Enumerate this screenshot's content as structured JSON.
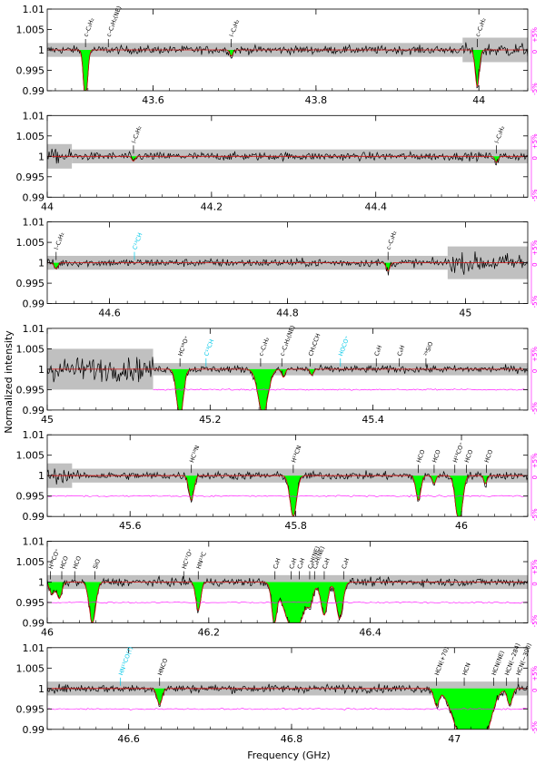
{
  "chart_data": {
    "type": "line",
    "xlabel": "Frequency (GHz)",
    "ylabel": "Normalized intensity",
    "ylim": [
      0.99,
      1.01
    ],
    "y_ticks": [
      {
        "v": 1.01,
        "label": "1.01"
      },
      {
        "v": 1.005,
        "label": "1.005"
      },
      {
        "v": 1.0,
        "label": "1"
      },
      {
        "v": 0.995,
        "label": "0.995"
      },
      {
        "v": 0.99,
        "label": "0.99"
      }
    ],
    "right_axis_labels": [
      "+5%",
      "0",
      "-5%"
    ],
    "colors": {
      "spectrum": "#000000",
      "model_fill": "#00ff00",
      "model_line": "#d01010",
      "noise_band": "#c0c0c0",
      "residual": "#ff00ff",
      "label_black": "#000000",
      "label_cyan": "#00c8e8"
    },
    "panels": [
      {
        "xlim": [
          43.47,
          44.06
        ],
        "x_ticks": [
          {
            "v": 43.6,
            "label": "43.6"
          },
          {
            "v": 43.8,
            "label": "43.8"
          },
          {
            "v": 44.0,
            "label": "44"
          }
        ],
        "show_residual": false,
        "noise_regions": [
          {
            "x": [
              43.47,
              43.98
            ],
            "hw": 0.0017
          },
          {
            "x": [
              43.98,
              44.06
            ],
            "hw": 0.003
          }
        ],
        "absorptions": [
          {
            "x": 43.517,
            "depth": 0.0125,
            "w": 0.0025
          },
          {
            "x": 43.998,
            "depth": 0.009,
            "w": 0.0025
          },
          {
            "x": 43.696,
            "depth": 0.0015,
            "w": 0.002
          }
        ],
        "labels": [
          {
            "x": 43.517,
            "text": "c–C₃H₂",
            "color": "black"
          },
          {
            "x": 43.545,
            "text": "c–C₃H₂(NE)",
            "color": "black"
          },
          {
            "x": 43.696,
            "text": "l–C₃H₂",
            "color": "black"
          },
          {
            "x": 43.998,
            "text": "c–C₃H₂",
            "color": "black"
          }
        ]
      },
      {
        "xlim": [
          44.0,
          44.585
        ],
        "x_ticks": [
          {
            "v": 44.0,
            "label": "44"
          },
          {
            "v": 44.2,
            "label": "44.2"
          },
          {
            "v": 44.4,
            "label": "44.4"
          }
        ],
        "show_residual": false,
        "noise_regions": [
          {
            "x": [
              44.0,
              44.03
            ],
            "hw": 0.003
          },
          {
            "x": [
              44.03,
              44.585
            ],
            "hw": 0.0017
          }
        ],
        "absorptions": [
          {
            "x": 44.105,
            "depth": 0.0012,
            "w": 0.002
          },
          {
            "x": 44.547,
            "depth": 0.0015,
            "w": 0.002
          }
        ],
        "labels": [
          {
            "x": 44.105,
            "text": "l–C₃H₂",
            "color": "black"
          },
          {
            "x": 44.547,
            "text": "l–C₃H₂",
            "color": "black"
          }
        ]
      },
      {
        "xlim": [
          44.53,
          45.07
        ],
        "x_ticks": [
          {
            "v": 44.6,
            "label": "44.6"
          },
          {
            "v": 44.8,
            "label": "44.8"
          },
          {
            "v": 45.0,
            "label": "45"
          }
        ],
        "show_residual": false,
        "noise_regions": [
          {
            "x": [
              44.53,
              44.98
            ],
            "hw": 0.0017
          },
          {
            "x": [
              44.98,
              45.07
            ],
            "hw": 0.004
          }
        ],
        "absorptions": [
          {
            "x": 44.54,
            "depth": 0.0015,
            "w": 0.002
          },
          {
            "x": 44.913,
            "depth": 0.002,
            "w": 0.002
          }
        ],
        "labels": [
          {
            "x": 44.54,
            "text": "l–C₃H₂",
            "color": "black"
          },
          {
            "x": 44.628,
            "text": "C¹³CH",
            "color": "cyan"
          },
          {
            "x": 44.913,
            "text": "c–C₃H₂",
            "color": "black"
          }
        ]
      },
      {
        "xlim": [
          45.0,
          45.59
        ],
        "x_ticks": [
          {
            "v": 45.0,
            "label": "45"
          },
          {
            "v": 45.2,
            "label": "45.2"
          },
          {
            "v": 45.4,
            "label": "45.4"
          }
        ],
        "show_residual": true,
        "noise_regions": [
          {
            "x": [
              45.0,
              45.13
            ],
            "hw": 0.005
          },
          {
            "x": [
              45.13,
              45.59
            ],
            "hw": 0.0015
          }
        ],
        "absorptions": [
          {
            "x": 45.163,
            "depth": 0.012,
            "w": 0.004
          },
          {
            "x": 45.265,
            "depth": 0.011,
            "w": 0.006
          },
          {
            "x": 45.325,
            "depth": 0.0015,
            "w": 0.002
          },
          {
            "x": 45.29,
            "depth": 0.002,
            "w": 0.002
          }
        ],
        "labels": [
          {
            "x": 45.163,
            "text": "HC¹⁸O⁺",
            "color": "black"
          },
          {
            "x": 45.195,
            "text": "C¹³CH",
            "color": "cyan"
          },
          {
            "x": 45.262,
            "text": "c–C₃H₂",
            "color": "black"
          },
          {
            "x": 45.288,
            "text": "c–C₃H₂(NE)",
            "color": "black"
          },
          {
            "x": 45.323,
            "text": "CH₃CCH",
            "color": "black"
          },
          {
            "x": 45.36,
            "text": "HOCO⁺",
            "color": "cyan"
          },
          {
            "x": 45.404,
            "text": "C₆H",
            "color": "black"
          },
          {
            "x": 45.432,
            "text": "C₆H",
            "color": "black"
          },
          {
            "x": 45.465,
            "text": "²⁹SiO",
            "color": "black"
          }
        ]
      },
      {
        "xlim": [
          45.5,
          46.08
        ],
        "x_ticks": [
          {
            "v": 45.6,
            "label": "45.6"
          },
          {
            "v": 45.8,
            "label": "45.8"
          },
          {
            "v": 46.0,
            "label": "46"
          }
        ],
        "show_residual": true,
        "noise_regions": [
          {
            "x": [
              45.5,
              45.53
            ],
            "hw": 0.003
          },
          {
            "x": [
              45.53,
              46.08
            ],
            "hw": 0.0017
          }
        ],
        "absorptions": [
          {
            "x": 45.674,
            "depth": 0.006,
            "w": 0.003
          },
          {
            "x": 45.797,
            "depth": 0.01,
            "w": 0.004
          },
          {
            "x": 45.948,
            "depth": 0.006,
            "w": 0.003
          },
          {
            "x": 45.967,
            "depth": 0.002,
            "w": 0.002
          },
          {
            "x": 45.997,
            "depth": 0.012,
            "w": 0.004
          },
          {
            "x": 46.029,
            "depth": 0.002,
            "w": 0.002
          }
        ],
        "labels": [
          {
            "x": 45.674,
            "text": "HC¹⁸N",
            "color": "black"
          },
          {
            "x": 45.797,
            "text": "H¹³CN",
            "color": "black"
          },
          {
            "x": 45.948,
            "text": "HCO",
            "color": "black"
          },
          {
            "x": 45.967,
            "text": "HCO",
            "color": "black"
          },
          {
            "x": 45.992,
            "text": "H¹³CO⁺",
            "color": "black"
          },
          {
            "x": 46.006,
            "text": "HCO",
            "color": "black"
          },
          {
            "x": 46.03,
            "text": "HCO",
            "color": "black"
          }
        ]
      },
      {
        "xlim": [
          46.0,
          46.595
        ],
        "x_ticks": [
          {
            "v": 46.0,
            "label": "46"
          },
          {
            "v": 46.2,
            "label": "46.2"
          },
          {
            "v": 46.4,
            "label": "46.4"
          }
        ],
        "show_residual": true,
        "noise_regions": [
          {
            "x": [
              46.0,
              46.595
            ],
            "hw": 0.0017
          }
        ],
        "absorptions": [
          {
            "x": 46.006,
            "depth": 0.003,
            "w": 0.003
          },
          {
            "x": 46.015,
            "depth": 0.004,
            "w": 0.003
          },
          {
            "x": 46.056,
            "depth": 0.01,
            "w": 0.004
          },
          {
            "x": 46.187,
            "depth": 0.007,
            "w": 0.003
          },
          {
            "x": 46.281,
            "depth": 0.009,
            "w": 0.003
          },
          {
            "x": 46.306,
            "depth": 0.012,
            "w": 0.012
          },
          {
            "x": 46.326,
            "depth": 0.003,
            "w": 0.003
          },
          {
            "x": 46.343,
            "depth": 0.008,
            "w": 0.004
          },
          {
            "x": 46.362,
            "depth": 0.009,
            "w": 0.004
          }
        ],
        "labels": [
          {
            "x": 46.004,
            "text": "H¹⁸CO⁺",
            "color": "black"
          },
          {
            "x": 46.018,
            "text": "HCO",
            "color": "black"
          },
          {
            "x": 46.034,
            "text": "HCO",
            "color": "black"
          },
          {
            "x": 46.059,
            "text": "SiO",
            "color": "black"
          },
          {
            "x": 46.169,
            "text": "HC¹⁷O⁺",
            "color": "black"
          },
          {
            "x": 46.187,
            "text": "HN¹³C",
            "color": "black"
          },
          {
            "x": 46.282,
            "text": "C₄H",
            "color": "black"
          },
          {
            "x": 46.302,
            "text": "C₄H",
            "color": "black"
          },
          {
            "x": 46.312,
            "text": "C₄H",
            "color": "black"
          },
          {
            "x": 46.325,
            "text": "C₄H(NE)",
            "color": "black"
          },
          {
            "x": 46.331,
            "text": "C₄H(NE)",
            "color": "black"
          },
          {
            "x": 46.343,
            "text": "C₄H",
            "color": "black"
          },
          {
            "x": 46.367,
            "text": "C₄H",
            "color": "black"
          }
        ]
      },
      {
        "xlim": [
          46.5,
          47.09
        ],
        "x_ticks": [
          {
            "v": 46.6,
            "label": "46.6"
          },
          {
            "v": 46.8,
            "label": "46.8"
          },
          {
            "v": 47.0,
            "label": "47"
          }
        ],
        "show_residual": true,
        "noise_regions": [
          {
            "x": [
              46.5,
              47.09
            ],
            "hw": 0.0017
          }
        ],
        "absorptions": [
          {
            "x": 46.638,
            "depth": 0.004,
            "w": 0.003
          },
          {
            "x": 46.978,
            "depth": 0.004,
            "w": 0.003
          },
          {
            "x": 47.01,
            "depth": 0.012,
            "w": 0.012
          },
          {
            "x": 47.035,
            "depth": 0.012,
            "w": 0.01
          },
          {
            "x": 47.068,
            "depth": 0.004,
            "w": 0.003
          }
        ],
        "labels": [
          {
            "x": 46.59,
            "text": "HN¹³CO(?)",
            "color": "cyan"
          },
          {
            "x": 46.638,
            "text": "HNCO",
            "color": "black"
          },
          {
            "x": 46.978,
            "text": "HCN(+70)",
            "color": "black"
          },
          {
            "x": 47.012,
            "text": "HCN",
            "color": "black"
          },
          {
            "x": 47.048,
            "text": "HCN(NE)",
            "color": "black"
          },
          {
            "x": 47.064,
            "text": "HCN(−284)",
            "color": "black"
          },
          {
            "x": 47.078,
            "text": "HCN(−300)",
            "color": "black"
          }
        ]
      }
    ]
  }
}
